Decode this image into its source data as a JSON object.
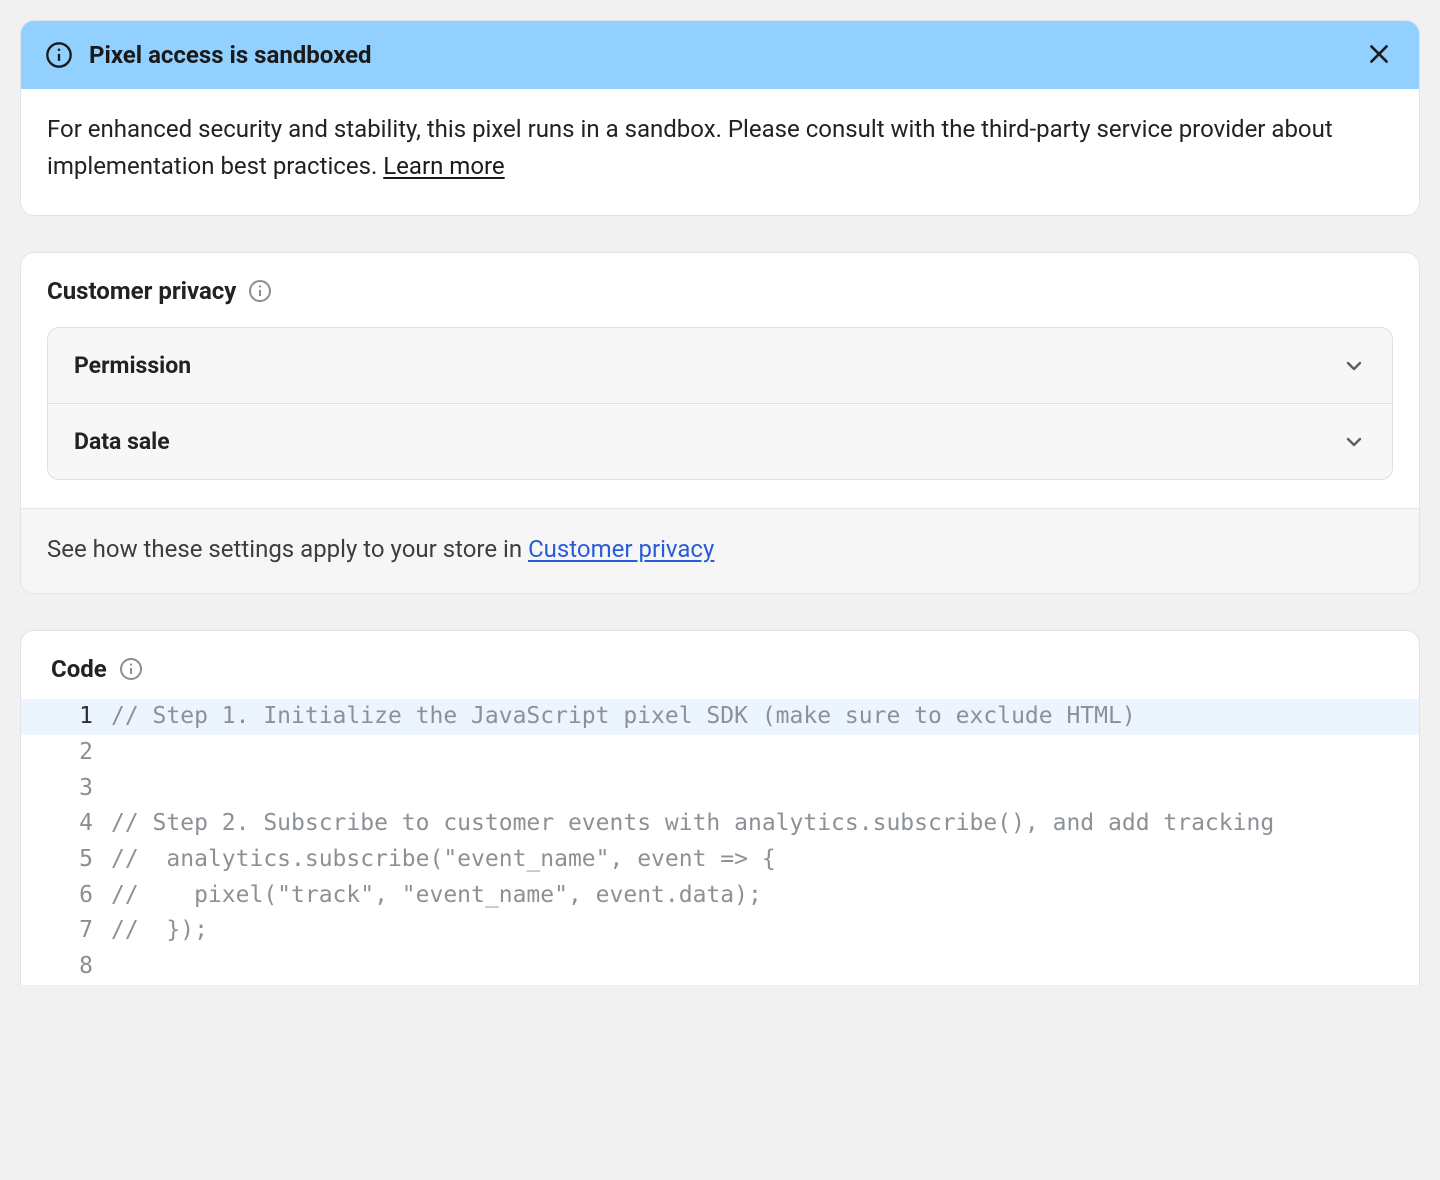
{
  "colors": {
    "page_bg": "#f1f1f1",
    "card_bg": "#ffffff",
    "card_border": "#e1e3e5",
    "banner_bg": "#91d0ff",
    "text": "#202223",
    "muted_text": "#8c9196",
    "link_blue": "#2a5bd7",
    "accordion_bg": "#f7f7f7",
    "accordion_border": "#dcdfe3",
    "footer_bg": "#f6f6f7",
    "highlight_bg": "#ecf5fd"
  },
  "banner": {
    "title": "Pixel access is sandboxed",
    "body_prefix": "For enhanced security and stability, this pixel runs in a sandbox. Please consult with the third-party service provider about implementation best practices. ",
    "learn_more": "Learn more"
  },
  "privacy": {
    "heading": "Customer privacy",
    "items": [
      {
        "label": "Permission"
      },
      {
        "label": "Data sale"
      }
    ],
    "footer_prefix": "See how these settings apply to your store in ",
    "footer_link": "Customer privacy"
  },
  "code": {
    "heading": "Code",
    "lines": [
      {
        "n": 1,
        "text": "// Step 1. Initialize the JavaScript pixel SDK (make sure to exclude HTML)",
        "highlight": true
      },
      {
        "n": 2,
        "text": ""
      },
      {
        "n": 3,
        "text": ""
      },
      {
        "n": 4,
        "text": "// Step 2. Subscribe to customer events with analytics.subscribe(), and add tracking"
      },
      {
        "n": 5,
        "text": "//  analytics.subscribe(\"event_name\", event => {"
      },
      {
        "n": 6,
        "text": "//    pixel(\"track\", \"event_name\", event.data);"
      },
      {
        "n": 7,
        "text": "//  });"
      },
      {
        "n": 8,
        "text": ""
      }
    ]
  }
}
